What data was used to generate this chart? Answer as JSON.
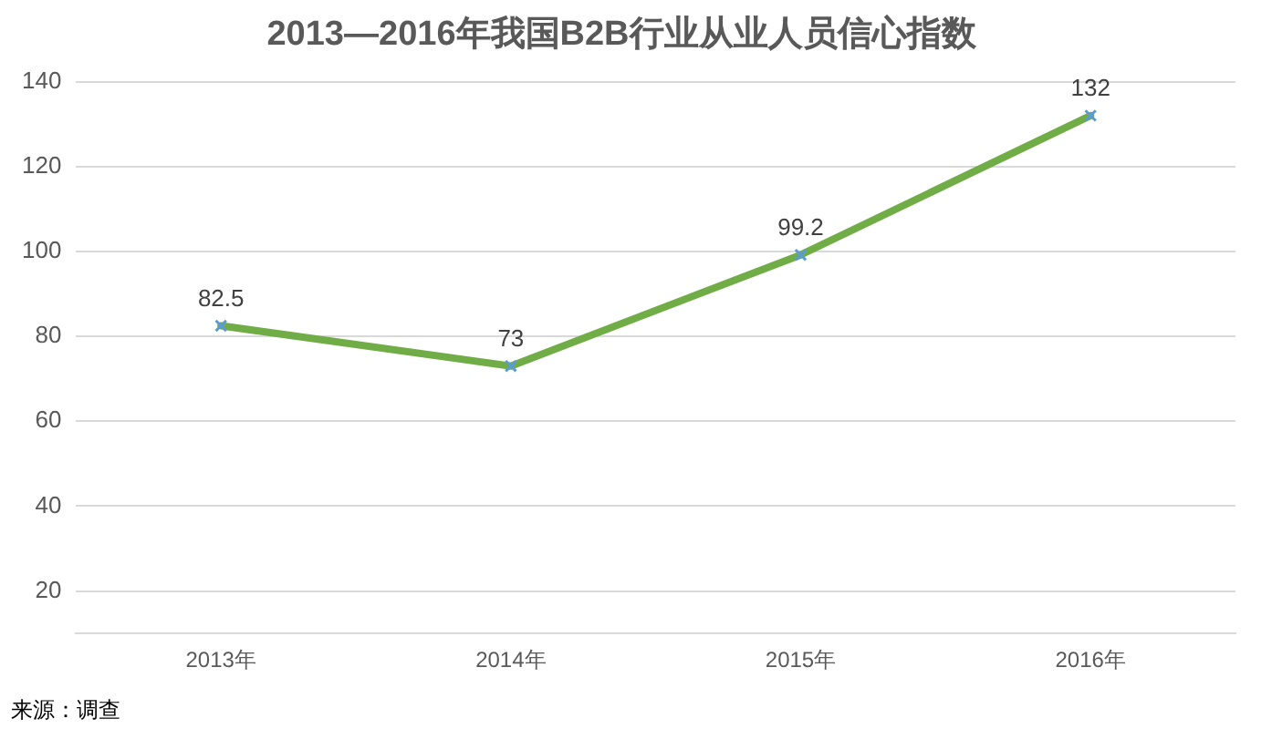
{
  "chart_data": {
    "type": "line",
    "title": "2013—2016年我国B2B行业从业人员信心指数",
    "categories": [
      "2013年",
      "2014年",
      "2015年",
      "2016年"
    ],
    "series": [
      {
        "color": "#70ad47",
        "values": [
          82.5,
          73,
          99.2,
          132
        ]
      }
    ],
    "ylim": [
      10,
      140
    ],
    "yticks": [
      20,
      40,
      60,
      80,
      100,
      120,
      140
    ],
    "grid": "y",
    "legend": false,
    "marker": "cross",
    "line_style": "solid",
    "data_labels": true,
    "annotations": [
      "来源：调查"
    ]
  }
}
